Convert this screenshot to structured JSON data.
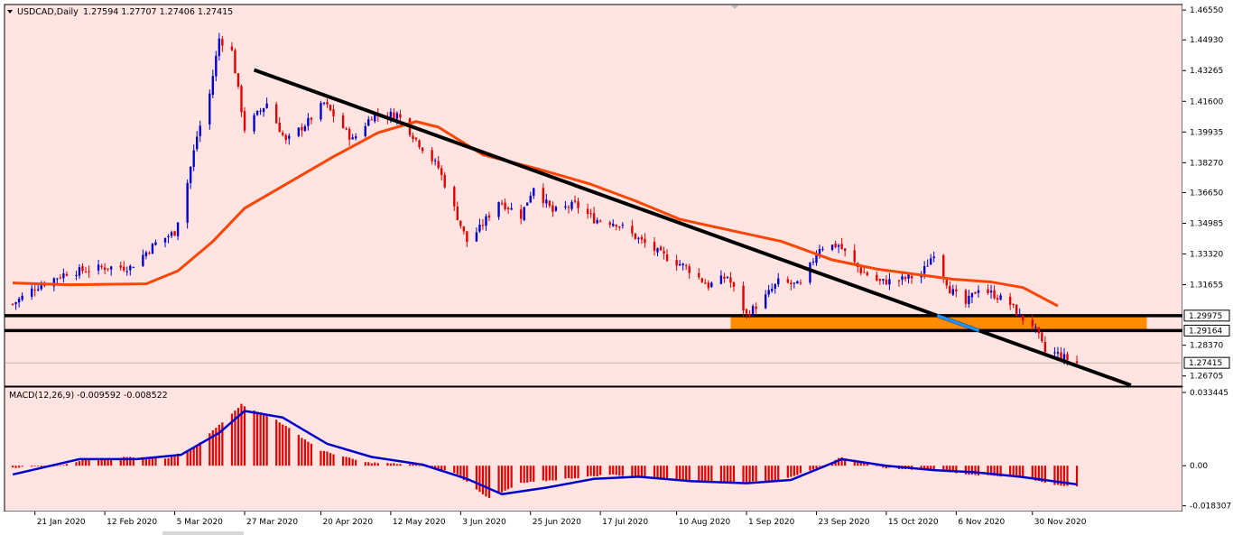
{
  "header": {
    "symbol_title": "USDCAD,Daily",
    "ohlc_text": "1.27594 1.27707 1.27406 1.27415"
  },
  "macd_header": "MACD(12,26,9) -0.009592 -0.008522",
  "colors": {
    "background": "#ffe4e1",
    "bull_candle": "#0000cc",
    "bear_candle": "#e00000",
    "moving_average": "#ff4500",
    "trendline": "#000000",
    "support_zone": "#ff8c00",
    "macd_histogram": "#e00000",
    "macd_signal": "#0000cc"
  },
  "chart_data": [
    {
      "type": "candlestick",
      "symbol": "USDCAD",
      "timeframe": "Daily",
      "ylim": [
        1.262,
        1.468
      ],
      "y_ticks": [
        "1.46550",
        "1.44930",
        "1.43265",
        "1.41600",
        "1.39935",
        "1.38270",
        "1.36650",
        "1.34985",
        "1.33320",
        "1.31655",
        "1.28370",
        "1.26705"
      ],
      "x_ticks": [
        "21 Jan 2020",
        "12 Feb 2020",
        "5 Mar 2020",
        "27 Mar 2020",
        "20 Apr 2020",
        "12 May 2020",
        "3 Jun 2020",
        "25 Jun 2020",
        "17 Jul 2020",
        "10 Aug 2020",
        "1 Sep 2020",
        "23 Sep 2020",
        "15 Oct 2020",
        "6 Nov 2020",
        "30 Nov 2020"
      ],
      "close_path": [
        [
          "2020-01-14",
          1.306
        ],
        [
          "2020-01-21",
          1.315
        ],
        [
          "2020-01-31",
          1.323
        ],
        [
          "2020-02-12",
          1.326
        ],
        [
          "2020-02-20",
          1.326
        ],
        [
          "2020-02-28",
          1.339
        ],
        [
          "2020-03-05",
          1.345
        ],
        [
          "2020-03-09",
          1.372
        ],
        [
          "2020-03-12",
          1.397
        ],
        [
          "2020-03-16",
          1.42
        ],
        [
          "2020-03-19",
          1.45
        ],
        [
          "2020-03-23",
          1.443
        ],
        [
          "2020-03-27",
          1.401
        ],
        [
          "2020-04-03",
          1.415
        ],
        [
          "2020-04-09",
          1.394
        ],
        [
          "2020-04-16",
          1.405
        ],
        [
          "2020-04-21",
          1.415
        ],
        [
          "2020-04-30",
          1.395
        ],
        [
          "2020-05-06",
          1.408
        ],
        [
          "2020-05-14",
          1.409
        ],
        [
          "2020-05-21",
          1.393
        ],
        [
          "2020-05-27",
          1.38
        ],
        [
          "2020-06-05",
          1.34
        ],
        [
          "2020-06-09",
          1.347
        ],
        [
          "2020-06-15",
          1.362
        ],
        [
          "2020-06-22",
          1.354
        ],
        [
          "2020-06-26",
          1.37
        ],
        [
          "2020-07-02",
          1.356
        ],
        [
          "2020-07-09",
          1.36
        ],
        [
          "2020-07-15",
          1.352
        ],
        [
          "2020-07-22",
          1.35
        ],
        [
          "2020-07-30",
          1.34
        ],
        [
          "2020-08-05",
          1.333
        ],
        [
          "2020-08-13",
          1.326
        ],
        [
          "2020-08-20",
          1.316
        ],
        [
          "2020-08-26",
          1.321
        ],
        [
          "2020-09-01",
          1.3
        ],
        [
          "2020-09-07",
          1.31
        ],
        [
          "2020-09-11",
          1.318
        ],
        [
          "2020-09-18",
          1.316
        ],
        [
          "2020-09-24",
          1.337
        ],
        [
          "2020-09-30",
          1.338
        ],
        [
          "2020-10-07",
          1.324
        ],
        [
          "2020-10-13",
          1.318
        ],
        [
          "2020-10-19",
          1.319
        ],
        [
          "2020-10-26",
          1.322
        ],
        [
          "2020-10-30",
          1.334
        ],
        [
          "2020-11-04",
          1.314
        ],
        [
          "2020-11-09",
          1.306
        ],
        [
          "2020-11-13",
          1.315
        ],
        [
          "2020-11-18",
          1.311
        ],
        [
          "2020-11-23",
          1.306
        ],
        [
          "2020-11-26",
          1.299
        ],
        [
          "2020-11-30",
          1.295
        ],
        [
          "2020-12-02",
          1.288
        ],
        [
          "2020-12-04",
          1.28
        ],
        [
          "2020-12-08",
          1.279
        ],
        [
          "2020-12-11",
          1.276
        ],
        [
          "2020-12-14",
          1.2742
        ]
      ],
      "moving_average": [
        [
          "2020-01-14",
          1.3175
        ],
        [
          "2020-02-01",
          1.3165
        ],
        [
          "2020-02-25",
          1.317
        ],
        [
          "2020-03-06",
          1.324
        ],
        [
          "2020-03-17",
          1.34
        ],
        [
          "2020-03-27",
          1.358
        ],
        [
          "2020-04-10",
          1.372
        ],
        [
          "2020-04-24",
          1.386
        ],
        [
          "2020-05-08",
          1.399
        ],
        [
          "2020-05-20",
          1.405
        ],
        [
          "2020-05-27",
          1.402
        ],
        [
          "2020-06-10",
          1.387
        ],
        [
          "2020-06-28",
          1.379
        ],
        [
          "2020-07-14",
          1.371
        ],
        [
          "2020-07-28",
          1.362
        ],
        [
          "2020-08-11",
          1.352
        ],
        [
          "2020-08-27",
          1.346
        ],
        [
          "2020-09-12",
          1.34
        ],
        [
          "2020-09-28",
          1.33
        ],
        [
          "2020-10-12",
          1.325
        ],
        [
          "2020-10-25",
          1.322
        ],
        [
          "2020-11-05",
          1.3195
        ],
        [
          "2020-11-17",
          1.318
        ],
        [
          "2020-11-27",
          1.315
        ],
        [
          "2020-12-08",
          1.305
        ]
      ],
      "trendline": [
        [
          "2020-03-30",
          1.433
        ],
        [
          "2020-12-31",
          1.262
        ]
      ],
      "support_zone": {
        "start": "2020-08-27",
        "end": "2021-01-05",
        "low": 1.2916,
        "high": 1.2998
      },
      "horizontal_lines": [
        1.29975,
        1.29164
      ],
      "price_labels": [
        "1.29975",
        "1.29164",
        "1.27415"
      ],
      "current_price": 1.27415
    },
    {
      "type": "macd",
      "params": "12,26,9",
      "macd": -0.009592,
      "signal": -0.008522,
      "ylim": [
        -0.0205,
        0.0355
      ],
      "y_ticks": [
        "0.033445",
        "0.00",
        "-0.018307"
      ],
      "histogram_path": [
        [
          "2020-01-14",
          -0.0008
        ],
        [
          "2020-01-28",
          0.0
        ],
        [
          "2020-02-07",
          0.003
        ],
        [
          "2020-02-20",
          0.004
        ],
        [
          "2020-03-02",
          0.003
        ],
        [
          "2020-03-11",
          0.008
        ],
        [
          "2020-03-20",
          0.02
        ],
        [
          "2020-03-26",
          0.028
        ],
        [
          "2020-04-06",
          0.021
        ],
        [
          "2020-04-20",
          0.007
        ],
        [
          "2020-05-04",
          0.0015
        ],
        [
          "2020-05-20",
          0.0005
        ],
        [
          "2020-06-01",
          -0.003
        ],
        [
          "2020-06-12",
          -0.015
        ],
        [
          "2020-06-22",
          -0.008
        ],
        [
          "2020-07-06",
          -0.006
        ],
        [
          "2020-07-20",
          -0.004
        ],
        [
          "2020-08-05",
          -0.006
        ],
        [
          "2020-08-24",
          -0.008
        ],
        [
          "2020-09-10",
          -0.007
        ],
        [
          "2020-09-22",
          -0.002
        ],
        [
          "2020-10-01",
          0.004
        ],
        [
          "2020-10-15",
          -0.001
        ],
        [
          "2020-10-30",
          -0.002
        ],
        [
          "2020-11-10",
          -0.004
        ],
        [
          "2020-11-25",
          -0.005
        ],
        [
          "2020-12-07",
          -0.0085
        ],
        [
          "2020-12-14",
          -0.0096
        ]
      ],
      "signal_path": [
        [
          "2020-01-14",
          -0.004
        ],
        [
          "2020-02-04",
          0.003
        ],
        [
          "2020-02-22",
          0.003
        ],
        [
          "2020-03-07",
          0.005
        ],
        [
          "2020-03-19",
          0.015
        ],
        [
          "2020-03-27",
          0.025
        ],
        [
          "2020-04-08",
          0.022
        ],
        [
          "2020-04-22",
          0.01
        ],
        [
          "2020-05-06",
          0.004
        ],
        [
          "2020-05-22",
          0.0005
        ],
        [
          "2020-06-05",
          -0.006
        ],
        [
          "2020-06-16",
          -0.013
        ],
        [
          "2020-06-30",
          -0.01
        ],
        [
          "2020-07-15",
          -0.006
        ],
        [
          "2020-07-29",
          -0.005
        ],
        [
          "2020-08-14",
          -0.007
        ],
        [
          "2020-09-01",
          -0.008
        ],
        [
          "2020-09-15",
          -0.0065
        ],
        [
          "2020-10-01",
          0.003
        ],
        [
          "2020-10-15",
          0.0
        ],
        [
          "2020-10-30",
          -0.002
        ],
        [
          "2020-11-12",
          -0.003
        ],
        [
          "2020-11-26",
          -0.005
        ],
        [
          "2020-12-14",
          -0.0085
        ]
      ]
    }
  ]
}
